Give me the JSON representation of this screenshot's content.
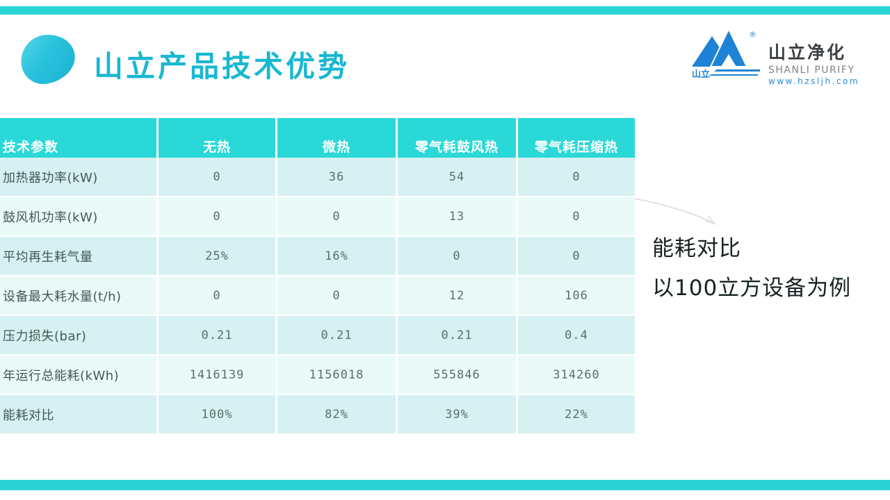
{
  "slide": {
    "title": "山立产品技术优势",
    "accent_color": "#19b7d2",
    "bar_color": "#2ad3d6"
  },
  "logo": {
    "cn_name": "山立净化",
    "en_name": "SHANLI PURIFY",
    "website": "www.hzsljh.com",
    "mark_label": "山立",
    "registered": "®",
    "brand_blue": "#1e83d6"
  },
  "table": {
    "header_bg": "#2bd8d8",
    "row_bg_odd": "#d6f1f1",
    "row_bg_even": "#eafaf9",
    "columns": [
      "技术参数",
      "无热",
      "微热",
      "零气耗鼓风热",
      "零气耗压缩热"
    ],
    "rows": [
      {
        "label": "加热器功率(kW)",
        "values": [
          "0",
          "36",
          "54",
          "0"
        ]
      },
      {
        "label": "鼓风机功率(kW)",
        "values": [
          "0",
          "0",
          "13",
          "0"
        ]
      },
      {
        "label": "平均再生耗气量",
        "values": [
          "25%",
          "16%",
          "0",
          "0"
        ]
      },
      {
        "label": "设备最大耗水量(t/h)",
        "values": [
          "0",
          "0",
          "12",
          "106"
        ]
      },
      {
        "label": "压力损失(bar)",
        "values": [
          "0.21",
          "0.21",
          "0.21",
          "0.4"
        ]
      },
      {
        "label": "年运行总能耗(kWh)",
        "values": [
          "1416139",
          "1156018",
          "555846",
          "314260"
        ]
      },
      {
        "label": "能耗对比",
        "values": [
          "100%",
          "82%",
          "39%",
          "22%"
        ]
      }
    ]
  },
  "annotation": {
    "line1": "能耗对比",
    "line2": "以100立方设备为例"
  }
}
